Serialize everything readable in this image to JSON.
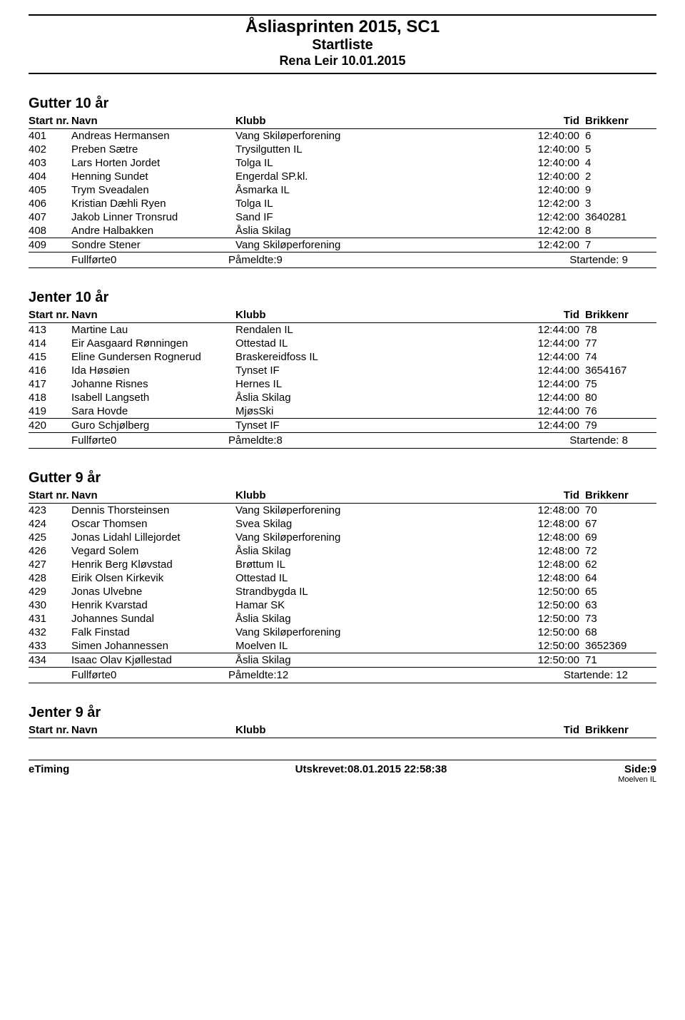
{
  "header": {
    "title": "Åsliasprinten 2015, SC1",
    "sub1": "Startliste",
    "sub2": "Rena Leir 10.01.2015"
  },
  "col_labels": {
    "startnr": "Start nr.",
    "navn": "Navn",
    "klubb": "Klubb",
    "tid": "Tid",
    "brikkenr": "Brikkenr"
  },
  "sections": [
    {
      "title": "Gutter 10 år",
      "rows": [
        {
          "nr": "401",
          "navn": "Andreas Hermansen",
          "klubb": "Vang Skiløperforening",
          "tid": "12:40:00",
          "br": "6"
        },
        {
          "nr": "402",
          "navn": "Preben Sætre",
          "klubb": "Trysilgutten IL",
          "tid": "12:40:00",
          "br": "5"
        },
        {
          "nr": "403",
          "navn": "Lars Horten Jordet",
          "klubb": "Tolga IL",
          "tid": "12:40:00",
          "br": "4"
        },
        {
          "nr": "404",
          "navn": "Henning Sundet",
          "klubb": "Engerdal SP.kl.",
          "tid": "12:40:00",
          "br": "2"
        },
        {
          "nr": "405",
          "navn": "Trym Sveadalen",
          "klubb": "Åsmarka IL",
          "tid": "12:40:00",
          "br": "9"
        },
        {
          "nr": "406",
          "navn": "Kristian Dæhli Ryen",
          "klubb": "Tolga IL",
          "tid": "12:42:00",
          "br": "3"
        },
        {
          "nr": "407",
          "navn": "Jakob Linner Tronsrud",
          "klubb": "Sand IF",
          "tid": "12:42:00",
          "br": "3640281"
        },
        {
          "nr": "408",
          "navn": "Andre Halbakken",
          "klubb": "Åslia Skilag",
          "tid": "12:42:00",
          "br": "8"
        },
        {
          "nr": "409",
          "navn": "Sondre Stener",
          "klubb": "Vang Skiløperforening",
          "tid": "12:42:00",
          "br": "7"
        }
      ],
      "summary": {
        "fullforte": "Fullførte0",
        "pameldte": "Påmeldte:9",
        "startende": "Startende: 9"
      }
    },
    {
      "title": "Jenter 10 år",
      "rows": [
        {
          "nr": "413",
          "navn": "Martine Lau",
          "klubb": "Rendalen IL",
          "tid": "12:44:00",
          "br": "78"
        },
        {
          "nr": "414",
          "navn": "Eir Aasgaard Rønningen",
          "klubb": "Ottestad IL",
          "tid": "12:44:00",
          "br": "77"
        },
        {
          "nr": "415",
          "navn": "Eline Gundersen Rognerud",
          "klubb": "Braskereidfoss IL",
          "tid": "12:44:00",
          "br": "74"
        },
        {
          "nr": "416",
          "navn": "Ida Høsøien",
          "klubb": "Tynset IF",
          "tid": "12:44:00",
          "br": "3654167"
        },
        {
          "nr": "417",
          "navn": "Johanne Risnes",
          "klubb": "Hernes IL",
          "tid": "12:44:00",
          "br": "75"
        },
        {
          "nr": "418",
          "navn": "Isabell Langseth",
          "klubb": "Åslia Skilag",
          "tid": "12:44:00",
          "br": "80"
        },
        {
          "nr": "419",
          "navn": "Sara Hovde",
          "klubb": "MjøsSki",
          "tid": "12:44:00",
          "br": "76"
        },
        {
          "nr": "420",
          "navn": "Guro Schjølberg",
          "klubb": "Tynset IF",
          "tid": "12:44:00",
          "br": "79"
        }
      ],
      "summary": {
        "fullforte": "Fullførte0",
        "pameldte": "Påmeldte:8",
        "startende": "Startende: 8"
      }
    },
    {
      "title": "Gutter 9 år",
      "rows": [
        {
          "nr": "423",
          "navn": "Dennis Thorsteinsen",
          "klubb": "Vang Skiløperforening",
          "tid": "12:48:00",
          "br": "70"
        },
        {
          "nr": "424",
          "navn": "Oscar Thomsen",
          "klubb": "Svea Skilag",
          "tid": "12:48:00",
          "br": "67"
        },
        {
          "nr": "425",
          "navn": "Jonas Lidahl Lillejordet",
          "klubb": "Vang Skiløperforening",
          "tid": "12:48:00",
          "br": "69"
        },
        {
          "nr": "426",
          "navn": "Vegard Solem",
          "klubb": "Åslia Skilag",
          "tid": "12:48:00",
          "br": "72"
        },
        {
          "nr": "427",
          "navn": "Henrik Berg Kløvstad",
          "klubb": "Brøttum IL",
          "tid": "12:48:00",
          "br": "62"
        },
        {
          "nr": "428",
          "navn": "Eirik Olsen Kirkevik",
          "klubb": "Ottestad IL",
          "tid": "12:48:00",
          "br": "64"
        },
        {
          "nr": "429",
          "navn": "Jonas Ulvebne",
          "klubb": "Strandbygda IL",
          "tid": "12:50:00",
          "br": "65"
        },
        {
          "nr": "430",
          "navn": "Henrik Kvarstad",
          "klubb": "Hamar SK",
          "tid": "12:50:00",
          "br": "63"
        },
        {
          "nr": "431",
          "navn": "Johannes Sundal",
          "klubb": "Åslia Skilag",
          "tid": "12:50:00",
          "br": "73"
        },
        {
          "nr": "432",
          "navn": "Falk Finstad",
          "klubb": "Vang Skiløperforening",
          "tid": "12:50:00",
          "br": "68"
        },
        {
          "nr": "433",
          "navn": "Simen Johannessen",
          "klubb": "Moelven IL",
          "tid": "12:50:00",
          "br": "3652369"
        },
        {
          "nr": "434",
          "navn": "Isaac Olav Kjøllestad",
          "klubb": "Åslia Skilag",
          "tid": "12:50:00",
          "br": "71"
        }
      ],
      "summary": {
        "fullforte": "Fullførte0",
        "pameldte": "Påmeldte:12",
        "startende": "Startende: 12"
      }
    },
    {
      "title": "Jenter 9 år",
      "rows": [],
      "summary": null
    }
  ],
  "footer": {
    "left": "eTiming",
    "mid": "Utskrevet:08.01.2015 22:58:38",
    "right": "Side:9",
    "sub": "Moelven IL"
  }
}
